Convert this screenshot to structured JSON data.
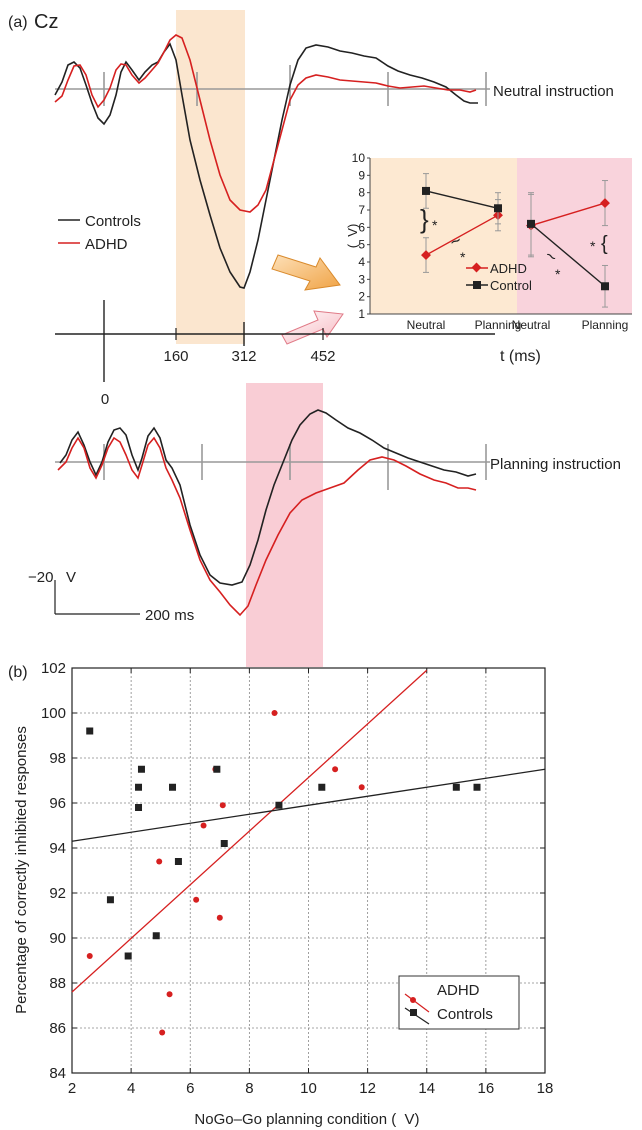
{
  "panel_a": {
    "label": "(a)",
    "electrode": "Cz",
    "neutral_label": "Neutral instruction",
    "planning_label": "Planning instruction",
    "legend": [
      {
        "name": "Controls",
        "color": "#222222"
      },
      {
        "name": "ADHD",
        "color": "#d62020"
      }
    ],
    "time_axis": {
      "label": "t (ms)",
      "ticks": [
        "0",
        "160",
        "312",
        "452"
      ]
    },
    "scale_bar": {
      "amplitude": "−20   V",
      "time": "200 ms"
    },
    "windows": {
      "neutral_color": "#fbe6cf",
      "planning_color": "#f9cdd5"
    }
  },
  "chart_data": [
    {
      "type": "line",
      "title": "",
      "xlabel": "",
      "ylabel": "(  V)",
      "categories": [
        "Neutral",
        "Planning",
        "Neutral",
        "Planning"
      ],
      "ylim": [
        1,
        10
      ],
      "yticks": [
        "1",
        "2",
        "3",
        "4",
        "5",
        "6",
        "7",
        "8",
        "9",
        "10"
      ],
      "series": [
        {
          "name": "ADHD",
          "color": "#d62020",
          "marker": "diamond",
          "values": [
            4.4,
            6.7,
            6.1,
            7.4
          ],
          "errors": [
            1.0,
            0.9,
            1.8,
            1.3
          ]
        },
        {
          "name": "Control",
          "color": "#222222",
          "marker": "square",
          "values": [
            8.1,
            7.1,
            6.2,
            2.6
          ],
          "errors": [
            1.0,
            0.9,
            1.8,
            1.2
          ]
        }
      ],
      "annotations": [
        "*",
        "*",
        "*",
        "*"
      ]
    },
    {
      "type": "scatter",
      "panel_label": "(b)",
      "title": "",
      "xlabel": "NoGo–Go planning condition (  V)",
      "ylabel": "Percentage of correctly inhibited responses",
      "xlim": [
        2,
        18
      ],
      "ylim": [
        84,
        102
      ],
      "xticks": [
        "2",
        "4",
        "6",
        "8",
        "10",
        "12",
        "14",
        "16",
        "18"
      ],
      "yticks": [
        "84",
        "86",
        "88",
        "90",
        "92",
        "94",
        "96",
        "98",
        "100",
        "102"
      ],
      "grid": true,
      "legend_position": "bottom-right",
      "series": [
        {
          "name": "ADHD",
          "color": "#d62020",
          "marker": "circle",
          "fit": {
            "x": [
              2,
              14
            ],
            "y": [
              87.6,
              101.9
            ]
          },
          "points": [
            [
              2.6,
              89.2
            ],
            [
              4.95,
              93.4
            ],
            [
              5.05,
              85.8
            ],
            [
              5.3,
              87.5
            ],
            [
              6.2,
              91.7
            ],
            [
              6.45,
              95.0
            ],
            [
              6.85,
              97.5
            ],
            [
              7.0,
              90.9
            ],
            [
              7.1,
              95.9
            ],
            [
              8.85,
              100.0
            ],
            [
              10.9,
              97.5
            ],
            [
              11.8,
              96.7
            ]
          ]
        },
        {
          "name": "Controls",
          "color": "#222222",
          "marker": "square",
          "fit": {
            "x": [
              2,
              18
            ],
            "y": [
              94.3,
              97.5
            ]
          },
          "points": [
            [
              2.6,
              99.2
            ],
            [
              3.3,
              91.7
            ],
            [
              3.9,
              89.2
            ],
            [
              4.25,
              96.7
            ],
            [
              4.25,
              95.8
            ],
            [
              4.35,
              97.5
            ],
            [
              4.85,
              90.1
            ],
            [
              5.4,
              96.7
            ],
            [
              5.6,
              93.4
            ],
            [
              6.9,
              97.5
            ],
            [
              7.15,
              94.2
            ],
            [
              9.0,
              95.9
            ],
            [
              10.45,
              96.7
            ],
            [
              15.0,
              96.7
            ],
            [
              15.7,
              96.7
            ]
          ]
        }
      ]
    }
  ]
}
